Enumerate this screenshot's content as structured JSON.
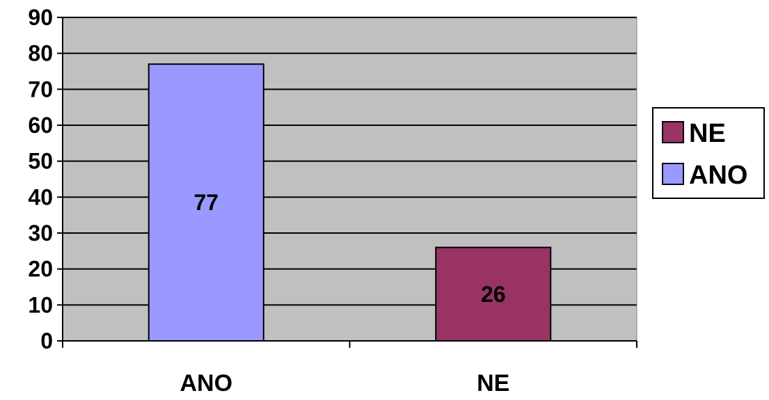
{
  "chart_data": {
    "type": "bar",
    "title": "",
    "xlabel": "",
    "ylabel": "",
    "categories": [
      "ANO",
      "NE"
    ],
    "values": [
      77,
      26
    ],
    "data_labels": [
      "77",
      "26"
    ],
    "colors": [
      "#9999ff",
      "#993366"
    ],
    "ylim": [
      0,
      90
    ],
    "yticks": [
      0,
      10,
      20,
      30,
      40,
      50,
      60,
      70,
      80,
      90
    ],
    "grid": true,
    "plot_background": "#c0c0c0",
    "legend": {
      "position": "right",
      "entries": [
        {
          "label": "NE",
          "color": "#993366"
        },
        {
          "label": "ANO",
          "color": "#9999ff"
        }
      ]
    }
  }
}
